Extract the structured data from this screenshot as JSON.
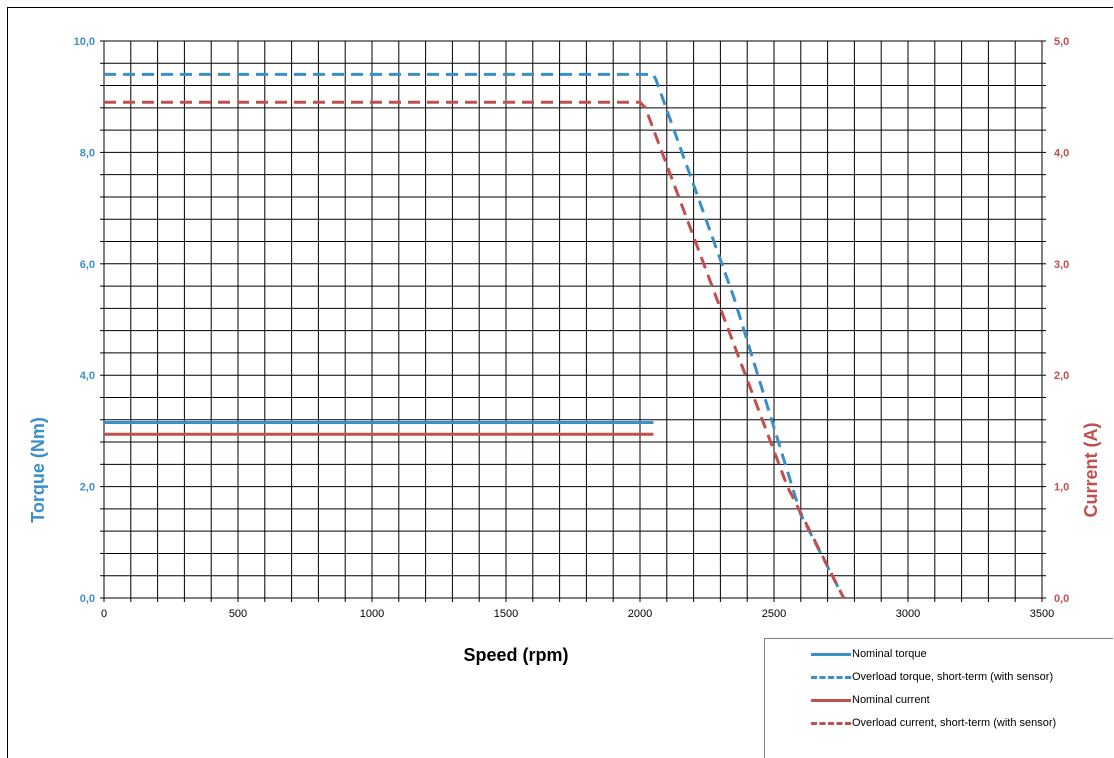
{
  "chart_data": {
    "type": "line",
    "xlabel": "Speed (rpm)",
    "ylabel_left": "Torque (Nm)",
    "ylabel_right": "Current (A)",
    "xlim": [
      0,
      3500
    ],
    "ylim_left": [
      0,
      10
    ],
    "ylim_right": [
      0,
      5
    ],
    "x_ticks": [
      "0",
      "500",
      "1000",
      "1500",
      "2000",
      "2500",
      "3000",
      "3500"
    ],
    "y_ticks_left": [
      "0,0",
      "2,0",
      "4,0",
      "6,0",
      "8,0",
      "10,0"
    ],
    "y_ticks_right": [
      "0,0",
      "1,0",
      "2,0",
      "3,0",
      "4,0",
      "5,0"
    ],
    "grid": true,
    "legend_position": "bottom-right",
    "colors": {
      "torque": "#3a8fc8",
      "current": "#c0504d"
    },
    "series": [
      {
        "name": "Nominal torque",
        "axis": "left",
        "style": "solid",
        "color": "#3a8fc8",
        "x": [
          0,
          2050
        ],
        "y": [
          3.15,
          3.15
        ]
      },
      {
        "name": "Overload torque, short-term (with sensor)",
        "axis": "left",
        "style": "dashed",
        "color": "#3a8fc8",
        "x": [
          0,
          2050,
          2060,
          2350,
          2600,
          2760
        ],
        "y": [
          9.4,
          9.4,
          9.3,
          5.4,
          1.5,
          0
        ]
      },
      {
        "name": "Nominal current",
        "axis": "right",
        "style": "solid",
        "color": "#c0504d",
        "x": [
          0,
          2050
        ],
        "y": [
          1.47,
          1.47
        ]
      },
      {
        "name": "Overload current, short-term (with sensor)",
        "axis": "right",
        "style": "dashed",
        "color": "#c0504d",
        "x": [
          0,
          2000,
          2020,
          2300,
          2550,
          2760
        ],
        "y": [
          4.45,
          4.45,
          4.4,
          2.6,
          1.0,
          0
        ]
      }
    ]
  }
}
